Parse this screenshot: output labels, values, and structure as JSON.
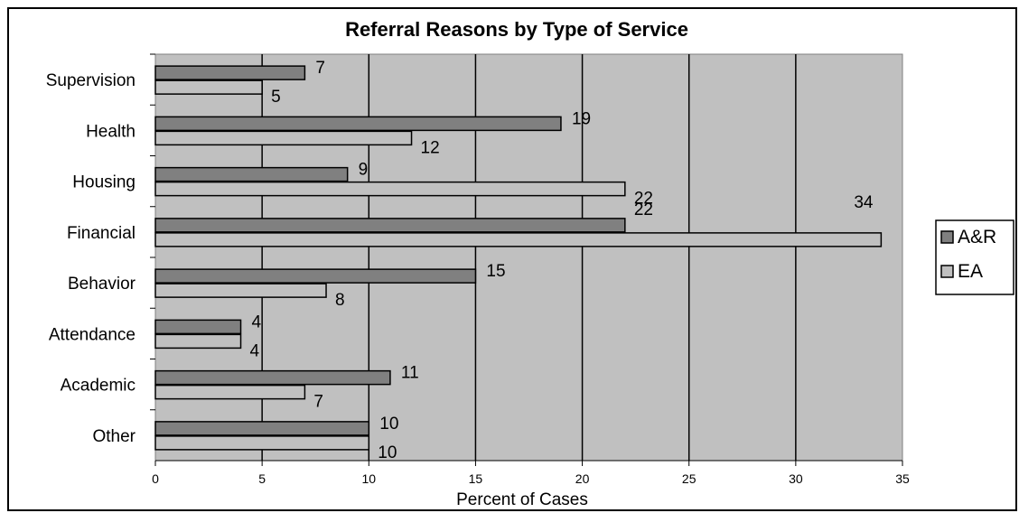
{
  "chart_data": {
    "type": "bar",
    "orientation": "horizontal",
    "title": "Referral Reasons by Type of Service",
    "xlabel": "Percent of Cases",
    "ylabel": "",
    "xlim": [
      0,
      35
    ],
    "xticks": [
      0,
      5,
      10,
      15,
      20,
      25,
      30,
      35
    ],
    "categories": [
      "Supervision",
      "Health",
      "Housing",
      "Financial",
      "Behavior",
      "Attendance",
      "Academic",
      "Other"
    ],
    "series": [
      {
        "name": "A&R",
        "color": "#808080",
        "values": [
          7,
          19,
          9,
          22,
          15,
          4,
          11,
          10
        ]
      },
      {
        "name": "EA",
        "color": "#c0c0c0",
        "values": [
          5,
          12,
          22,
          34,
          8,
          4,
          7,
          10
        ]
      }
    ],
    "grid": "vertical major gridlines",
    "legend_position": "right",
    "plot_background": "#c0c0c0"
  }
}
